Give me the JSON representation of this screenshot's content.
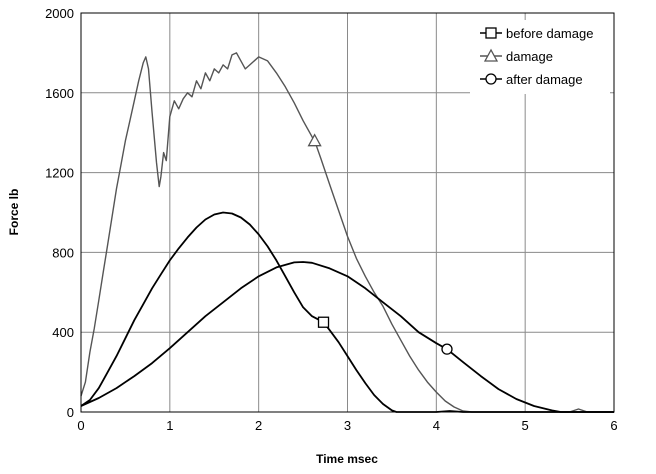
{
  "chart_data": {
    "type": "line",
    "title": "",
    "xlabel": "Time msec",
    "ylabel": "Force lb",
    "xlim": [
      0,
      6
    ],
    "ylim": [
      0,
      2000
    ],
    "xticks": [
      "0",
      "1",
      "2",
      "3",
      "4",
      "5",
      "6"
    ],
    "yticks": [
      "0",
      "400",
      "800",
      "1200",
      "1600",
      "2000"
    ],
    "grid": true,
    "legend_position": "top-right",
    "series": [
      {
        "name": "before damage",
        "marker": "square",
        "color": "#000000",
        "marker_point": [
          2.73,
          450
        ],
        "points": [
          [
            0,
            30
          ],
          [
            0.1,
            60
          ],
          [
            0.2,
            120
          ],
          [
            0.3,
            200
          ],
          [
            0.4,
            280
          ],
          [
            0.5,
            370
          ],
          [
            0.6,
            460
          ],
          [
            0.7,
            540
          ],
          [
            0.8,
            620
          ],
          [
            0.9,
            690
          ],
          [
            1.0,
            760
          ],
          [
            1.1,
            820
          ],
          [
            1.2,
            875
          ],
          [
            1.3,
            925
          ],
          [
            1.4,
            965
          ],
          [
            1.5,
            990
          ],
          [
            1.6,
            1000
          ],
          [
            1.7,
            995
          ],
          [
            1.8,
            975
          ],
          [
            1.9,
            940
          ],
          [
            2.0,
            890
          ],
          [
            2.1,
            830
          ],
          [
            2.2,
            760
          ],
          [
            2.3,
            680
          ],
          [
            2.4,
            600
          ],
          [
            2.5,
            525
          ],
          [
            2.6,
            480
          ],
          [
            2.73,
            450
          ],
          [
            2.8,
            410
          ],
          [
            2.9,
            350
          ],
          [
            3.0,
            280
          ],
          [
            3.1,
            210
          ],
          [
            3.2,
            145
          ],
          [
            3.3,
            85
          ],
          [
            3.4,
            40
          ],
          [
            3.5,
            8
          ],
          [
            3.55,
            0
          ],
          [
            4.0,
            0
          ],
          [
            4.15,
            5
          ],
          [
            4.3,
            0
          ],
          [
            6.0,
            0
          ]
        ]
      },
      {
        "name": "damage",
        "marker": "triangle",
        "color": "#555555",
        "marker_point": [
          2.63,
          1360
        ],
        "points": [
          [
            0,
            80
          ],
          [
            0.05,
            150
          ],
          [
            0.1,
            300
          ],
          [
            0.15,
            420
          ],
          [
            0.2,
            560
          ],
          [
            0.25,
            700
          ],
          [
            0.3,
            840
          ],
          [
            0.35,
            980
          ],
          [
            0.4,
            1120
          ],
          [
            0.45,
            1240
          ],
          [
            0.5,
            1360
          ],
          [
            0.55,
            1460
          ],
          [
            0.6,
            1560
          ],
          [
            0.65,
            1660
          ],
          [
            0.7,
            1750
          ],
          [
            0.73,
            1780
          ],
          [
            0.76,
            1720
          ],
          [
            0.8,
            1500
          ],
          [
            0.85,
            1250
          ],
          [
            0.88,
            1130
          ],
          [
            0.9,
            1180
          ],
          [
            0.93,
            1300
          ],
          [
            0.96,
            1260
          ],
          [
            1.0,
            1480
          ],
          [
            1.05,
            1560
          ],
          [
            1.1,
            1520
          ],
          [
            1.15,
            1570
          ],
          [
            1.2,
            1600
          ],
          [
            1.25,
            1580
          ],
          [
            1.3,
            1660
          ],
          [
            1.35,
            1620
          ],
          [
            1.4,
            1700
          ],
          [
            1.45,
            1660
          ],
          [
            1.5,
            1720
          ],
          [
            1.55,
            1700
          ],
          [
            1.6,
            1740
          ],
          [
            1.65,
            1720
          ],
          [
            1.7,
            1790
          ],
          [
            1.75,
            1800
          ],
          [
            1.8,
            1760
          ],
          [
            1.85,
            1720
          ],
          [
            1.9,
            1740
          ],
          [
            2.0,
            1780
          ],
          [
            2.1,
            1760
          ],
          [
            2.2,
            1700
          ],
          [
            2.3,
            1630
          ],
          [
            2.4,
            1550
          ],
          [
            2.5,
            1460
          ],
          [
            2.6,
            1380
          ],
          [
            2.63,
            1360
          ],
          [
            2.7,
            1270
          ],
          [
            2.8,
            1140
          ],
          [
            2.9,
            1010
          ],
          [
            3.0,
            880
          ],
          [
            3.1,
            770
          ],
          [
            3.2,
            680
          ],
          [
            3.3,
            600
          ],
          [
            3.4,
            530
          ],
          [
            3.5,
            440
          ],
          [
            3.6,
            360
          ],
          [
            3.7,
            280
          ],
          [
            3.8,
            210
          ],
          [
            3.9,
            150
          ],
          [
            4.0,
            100
          ],
          [
            4.1,
            55
          ],
          [
            4.2,
            25
          ],
          [
            4.3,
            5
          ],
          [
            4.4,
            0
          ],
          [
            5.5,
            0
          ],
          [
            5.6,
            15
          ],
          [
            5.7,
            0
          ],
          [
            6.0,
            0
          ]
        ]
      },
      {
        "name": "after damage",
        "marker": "circle",
        "color": "#000000",
        "marker_point": [
          4.12,
          315
        ],
        "points": [
          [
            0,
            30
          ],
          [
            0.2,
            70
          ],
          [
            0.4,
            120
          ],
          [
            0.6,
            180
          ],
          [
            0.8,
            245
          ],
          [
            1.0,
            320
          ],
          [
            1.2,
            400
          ],
          [
            1.4,
            480
          ],
          [
            1.6,
            550
          ],
          [
            1.8,
            620
          ],
          [
            2.0,
            680
          ],
          [
            2.2,
            725
          ],
          [
            2.4,
            750
          ],
          [
            2.5,
            752
          ],
          [
            2.6,
            748
          ],
          [
            2.8,
            720
          ],
          [
            3.0,
            680
          ],
          [
            3.2,
            620
          ],
          [
            3.4,
            550
          ],
          [
            3.6,
            480
          ],
          [
            3.8,
            400
          ],
          [
            4.0,
            345
          ],
          [
            4.12,
            315
          ],
          [
            4.3,
            250
          ],
          [
            4.5,
            180
          ],
          [
            4.7,
            115
          ],
          [
            4.9,
            65
          ],
          [
            5.1,
            30
          ],
          [
            5.3,
            8
          ],
          [
            5.4,
            0
          ],
          [
            6.0,
            0
          ]
        ]
      }
    ]
  }
}
